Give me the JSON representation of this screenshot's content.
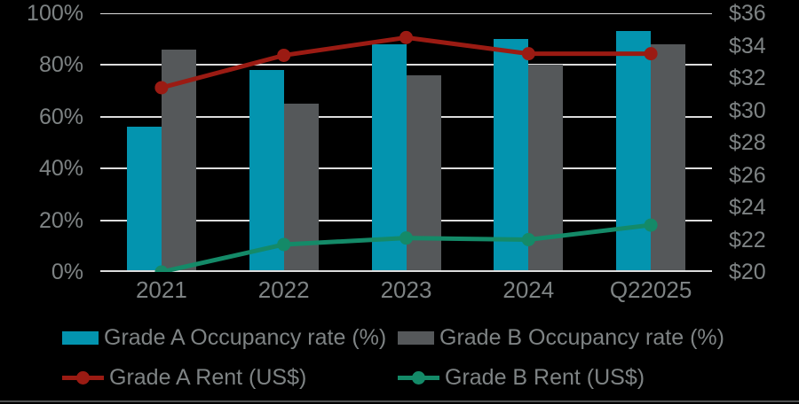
{
  "colors": {
    "background": "#000000",
    "grade_a_bar": "#0394AF",
    "grade_b_bar": "#55585A",
    "grade_a_line": "#9B1B13",
    "grade_b_line": "#148A68",
    "axis_text": "#7E8384",
    "gridline": "#DCDCDC",
    "bottom_rule": "#4F5152"
  },
  "chart_data": {
    "type": "bar+line combo, dual axis",
    "categories": [
      "2021",
      "2022",
      "2023",
      "2024",
      "Q22025"
    ],
    "bar_series": [
      {
        "name": "Grade A Occupancy rate (%)",
        "axis": "left",
        "color_key": "grade_a_bar",
        "values": [
          56,
          78,
          88,
          90,
          93
        ]
      },
      {
        "name": "Grade B Occupancy rate (%)",
        "axis": "left",
        "color_key": "grade_b_bar",
        "values": [
          86,
          65,
          76,
          80,
          88
        ]
      }
    ],
    "line_series": [
      {
        "name": "Grade A Rent (US$)",
        "axis": "right",
        "color_key": "grade_a_line",
        "values": [
          31.4,
          33.4,
          34.5,
          33.5,
          33.5
        ]
      },
      {
        "name": "Grade B Rent (US$)",
        "axis": "right",
        "color_key": "grade_b_line",
        "values": [
          20.0,
          21.7,
          22.1,
          22.0,
          22.9
        ]
      }
    ],
    "left_axis": {
      "min": 0,
      "max": 100,
      "tick_labels": [
        "100%",
        "80%",
        "60%",
        "40%",
        "20%",
        "0%"
      ],
      "tick_values": [
        100,
        80,
        60,
        40,
        20,
        0
      ]
    },
    "right_axis": {
      "min": 20,
      "max": 36,
      "tick_labels": [
        "$36",
        "$34",
        "$32",
        "$30",
        "$28",
        "$26",
        "$24",
        "$22",
        "$20"
      ],
      "tick_values": [
        36,
        34,
        32,
        30,
        28,
        26,
        24,
        22,
        20
      ]
    },
    "grid": true,
    "legend_position": "bottom"
  },
  "legend": {
    "items": [
      {
        "label": "Grade A Occupancy rate (%)",
        "swatch": "bar",
        "color_key": "grade_a_bar"
      },
      {
        "label": "Grade B Occupancy rate (%)",
        "swatch": "bar",
        "color_key": "grade_b_bar"
      },
      {
        "label": "Grade A Rent (US$)",
        "swatch": "line",
        "color_key": "grade_a_line"
      },
      {
        "label": "Grade B Rent (US$)",
        "swatch": "line",
        "color_key": "grade_b_line"
      }
    ]
  }
}
